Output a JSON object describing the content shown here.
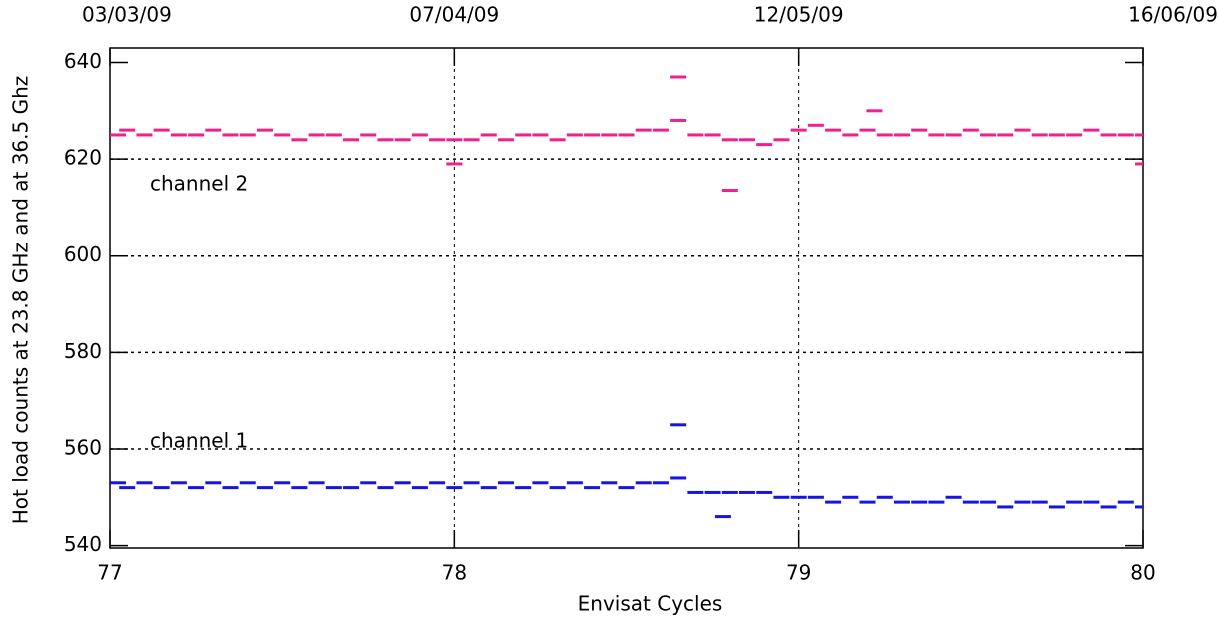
{
  "chart_data": {
    "type": "scatter",
    "ylabel": "Hot load counts at 23.8 GHz and at 36.5 Ghz",
    "xlabel": "Envisat Cycles",
    "xlim": [
      77,
      80
    ],
    "xticks": [
      77,
      78,
      79,
      80
    ],
    "top_xticks": [
      {
        "value": 77,
        "label": "03/03/09"
      },
      {
        "value": 78,
        "label": "07/04/09"
      },
      {
        "value": 79,
        "label": "12/05/09"
      },
      {
        "value": 80,
        "label": "16/06/09"
      }
    ],
    "ylim": [
      539.5,
      643
    ],
    "yticks": [
      540,
      560,
      580,
      600,
      620,
      640
    ],
    "grid": true,
    "series": [
      {
        "name": "channel 2",
        "color": "#f0208c",
        "x": [
          77.0,
          77.05,
          77.1,
          77.15,
          77.2,
          77.25,
          77.3,
          77.35,
          77.4,
          77.45,
          77.5,
          77.55,
          77.6,
          77.65,
          77.7,
          77.75,
          77.8,
          77.85,
          77.9,
          77.95,
          78.0,
          78.05,
          78.1,
          78.15,
          78.2,
          78.25,
          78.3,
          78.35,
          78.4,
          78.45,
          78.5,
          78.55,
          78.6,
          78.65,
          78.7,
          78.75,
          78.8,
          78.85,
          78.9,
          78.95,
          79.0,
          79.05,
          79.1,
          79.15,
          79.2,
          79.25,
          79.3,
          79.35,
          79.4,
          79.45,
          79.5,
          79.55,
          79.6,
          79.65,
          79.7,
          79.75,
          79.8,
          79.85,
          79.9,
          79.95,
          80.0,
          78.65,
          78.8,
          78.0,
          79.22,
          80.0
        ],
        "values": [
          625,
          626,
          625,
          626,
          625,
          625,
          626,
          625,
          625,
          626,
          625,
          624,
          625,
          625,
          624,
          625,
          624,
          624,
          625,
          624,
          624,
          624,
          625,
          624,
          625,
          625,
          624,
          625,
          625,
          625,
          625,
          626,
          626,
          628,
          625,
          625,
          624,
          624,
          623,
          624,
          626,
          627,
          626,
          625,
          626,
          625,
          625,
          626,
          625,
          625,
          626,
          625,
          625,
          626,
          625,
          625,
          625,
          626,
          625,
          625,
          625,
          637,
          613.5,
          619,
          630,
          619
        ]
      },
      {
        "name": "channel 1",
        "color": "#1414e6",
        "x": [
          77.0,
          77.05,
          77.1,
          77.15,
          77.2,
          77.25,
          77.3,
          77.35,
          77.4,
          77.45,
          77.5,
          77.55,
          77.6,
          77.65,
          77.7,
          77.75,
          77.8,
          77.85,
          77.9,
          77.95,
          78.0,
          78.05,
          78.1,
          78.15,
          78.2,
          78.25,
          78.3,
          78.35,
          78.4,
          78.45,
          78.5,
          78.55,
          78.6,
          78.65,
          78.7,
          78.75,
          78.8,
          78.85,
          78.9,
          78.95,
          79.0,
          79.05,
          79.1,
          79.15,
          79.2,
          79.25,
          79.3,
          79.35,
          79.4,
          79.45,
          79.5,
          79.55,
          79.6,
          79.65,
          79.7,
          79.75,
          79.8,
          79.85,
          79.9,
          79.95,
          80.0,
          78.65,
          78.78
        ],
        "values": [
          553,
          552,
          553,
          552,
          553,
          552,
          553,
          552,
          553,
          552,
          553,
          552,
          553,
          552,
          552,
          553,
          552,
          553,
          552,
          553,
          552,
          553,
          552,
          553,
          552,
          553,
          552,
          553,
          552,
          553,
          552,
          553,
          553,
          554,
          551,
          551,
          551,
          551,
          551,
          550,
          550,
          550,
          549,
          550,
          549,
          550,
          549,
          549,
          549,
          550,
          549,
          549,
          548,
          549,
          549,
          548,
          549,
          549,
          548,
          549,
          548,
          565,
          546
        ]
      }
    ]
  }
}
